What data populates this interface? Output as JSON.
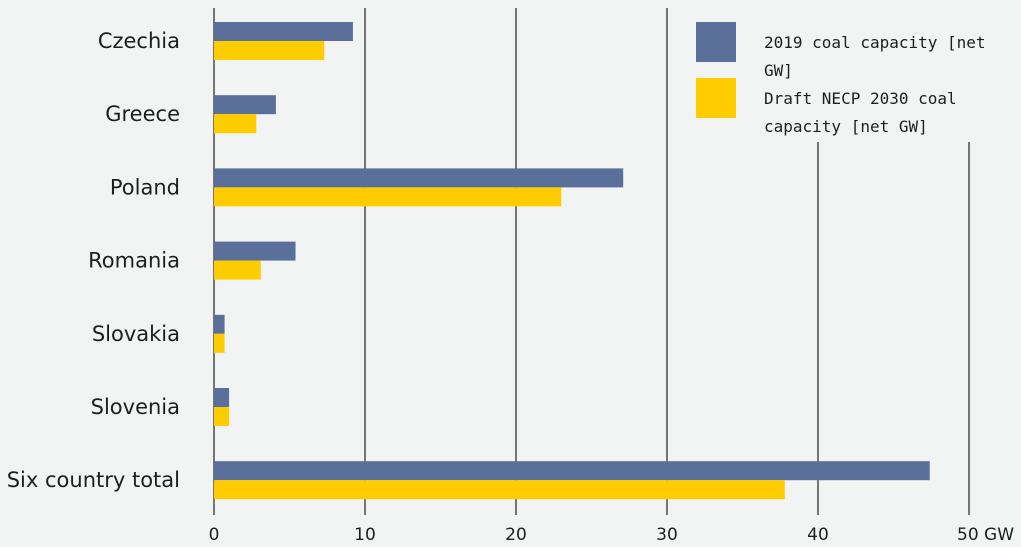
{
  "chart_data": {
    "type": "bar",
    "orientation": "horizontal",
    "categories": [
      "Czechia",
      "Greece",
      "Poland",
      "Romania",
      "Slovakia",
      "Slovenia",
      "Six country total"
    ],
    "series": [
      {
        "name": "2019 coal capacity [net GW]",
        "color": "#5a6f99",
        "values": [
          9.2,
          4.1,
          27.1,
          5.4,
          0.7,
          1.0,
          47.4
        ]
      },
      {
        "name": "Draft NECP 2030 coal capacity [net GW]",
        "color": "#ffcc00",
        "values": [
          7.3,
          2.8,
          23.0,
          3.1,
          0.7,
          1.0,
          37.8
        ]
      }
    ],
    "xlim": [
      0,
      50
    ],
    "xticks": [
      "0",
      "10",
      "20",
      "30",
      "40",
      "50 GW"
    ],
    "grid": true,
    "legend_position": "top-right"
  }
}
